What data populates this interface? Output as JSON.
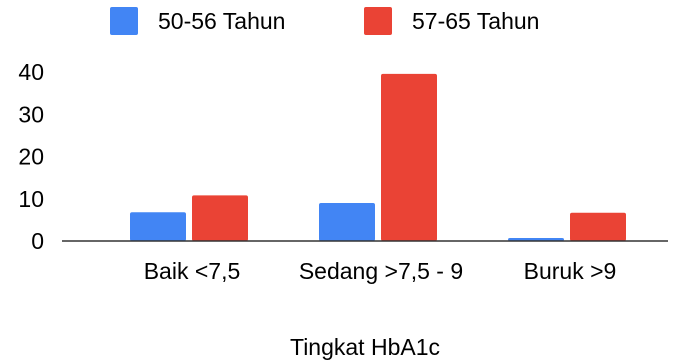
{
  "chart_data": {
    "type": "bar",
    "title": "",
    "xlabel": "Tingkat HbA1c",
    "ylabel": "",
    "categories": [
      "Baik <7,5",
      "Sedang >7,5 - 9",
      "Buruk >9"
    ],
    "series": [
      {
        "name": "50-56 Tahun",
        "values": [
          6.8,
          9.0,
          0.7
        ]
      },
      {
        "name": "57-65 Tahun",
        "values": [
          10.8,
          39.6,
          6.7
        ]
      }
    ],
    "yticks": [
      0,
      10,
      20,
      30,
      40
    ],
    "ylim": [
      0,
      42
    ],
    "grid": false,
    "legend": "top",
    "colors": [
      "#4285f4",
      "#ea4335"
    ]
  }
}
